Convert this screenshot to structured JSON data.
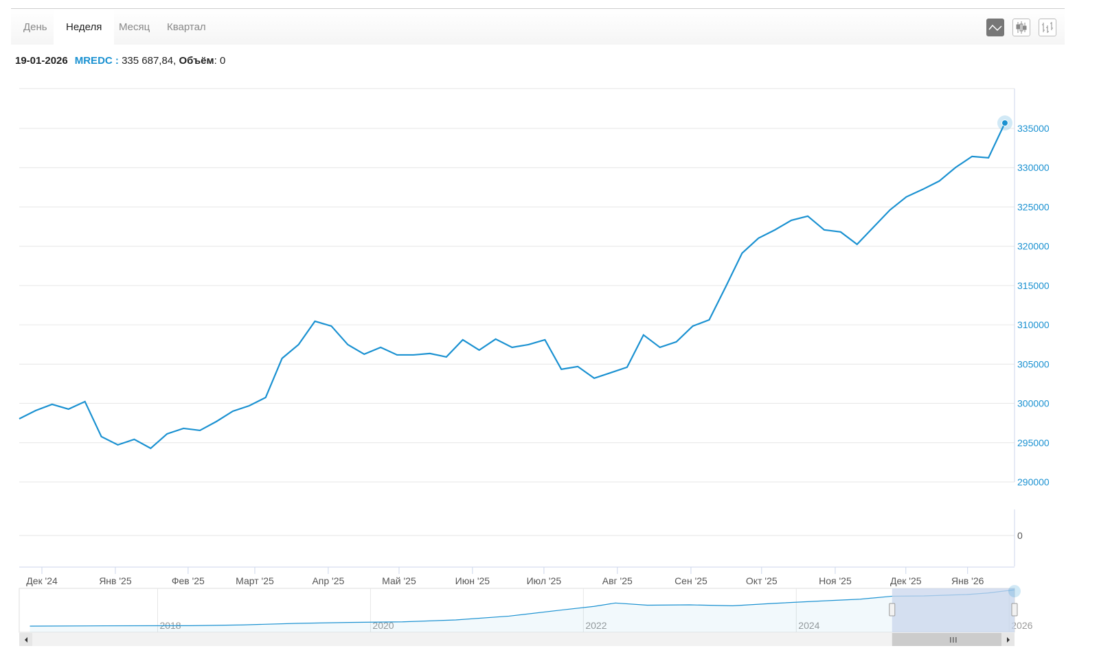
{
  "tabs": [
    {
      "label": "День"
    },
    {
      "label": "Неделя",
      "active": true
    },
    {
      "label": "Месяц"
    },
    {
      "label": "Квартал"
    }
  ],
  "chart_types": [
    "line-chart-icon",
    "candlestick-icon",
    "ohlc-icon"
  ],
  "info": {
    "date": "19-01-2026",
    "symbol": "MREDC :",
    "value": "335 687,84,",
    "volume_label": "Объём",
    "volume_value": ": 0"
  },
  "colors": {
    "line": "#1a91d1",
    "axis": "#1a91d1",
    "grid": "#e6e6e6",
    "navigator_mask": "#c9d5ec"
  },
  "chart_data": {
    "type": "line",
    "title": "",
    "series": [
      {
        "name": "MREDC",
        "values": [
          298040,
          299090,
          299880,
          299270,
          300230,
          295770,
          294720,
          295420,
          294280,
          296120,
          296820,
          296560,
          297690,
          299000,
          299700,
          300750,
          305730,
          307480,
          310450,
          309840,
          307480,
          306260,
          307130,
          306170,
          306170,
          306350,
          305910,
          308090,
          306780,
          308180,
          307130,
          307480,
          308090,
          304340,
          304690,
          303200,
          303900,
          304600,
          308710,
          307130,
          307830,
          309840,
          310630,
          314820,
          319110,
          321030,
          322080,
          323300,
          323830,
          322080,
          321820,
          320240,
          322430,
          324610,
          326280,
          327240,
          328290,
          330030,
          331430,
          331260,
          335687.84
        ]
      }
    ],
    "x_unit": "week index (weekly, last = 19-01-2026)",
    "ylim": [
      290000,
      340000
    ],
    "yticks": [
      290000,
      295000,
      300000,
      305000,
      310000,
      315000,
      320000,
      325000,
      330000,
      335000
    ],
    "xticks": [
      {
        "label": "Дек '24",
        "x": 1.38
      },
      {
        "label": "Янв '25",
        "x": 5.85
      },
      {
        "label": "Фев '25",
        "x": 10.28
      },
      {
        "label": "Март '25",
        "x": 14.34
      },
      {
        "label": "Апр '25",
        "x": 18.81
      },
      {
        "label": "Май '25",
        "x": 23.12
      },
      {
        "label": "Июн '25",
        "x": 27.59
      },
      {
        "label": "Июл '25",
        "x": 31.94
      },
      {
        "label": "Авг '25",
        "x": 36.41
      },
      {
        "label": "Сен '25",
        "x": 40.89
      },
      {
        "label": "Окт '25",
        "x": 45.19
      },
      {
        "label": "Ноя '25",
        "x": 49.67
      },
      {
        "label": "Дек '25",
        "x": 53.97
      },
      {
        "label": "Янв '26",
        "x": 57.73
      }
    ],
    "volume": {
      "ytick": "0",
      "values": [
        0
      ]
    },
    "navigator": {
      "years": [
        {
          "label": "2018",
          "x": 2018
        },
        {
          "label": "2020",
          "x": 2020
        },
        {
          "label": "2022",
          "x": 2022
        },
        {
          "label": "2024",
          "x": 2024
        },
        {
          "label": "2026",
          "x": 2026
        }
      ],
      "xlim": [
        2016.7,
        2026.05
      ],
      "selected": [
        2024.9,
        2026.05
      ],
      "values": [
        [
          2016.8,
          100000
        ],
        [
          2017.5,
          102000
        ],
        [
          2018.3,
          103000
        ],
        [
          2018.8,
          108000
        ],
        [
          2019.3,
          118000
        ],
        [
          2019.8,
          124000
        ],
        [
          2020.3,
          128000
        ],
        [
          2020.8,
          140000
        ],
        [
          2021.3,
          165000
        ],
        [
          2021.8,
          205000
        ],
        [
          2022.1,
          228000
        ],
        [
          2022.3,
          250000
        ],
        [
          2022.6,
          236000
        ],
        [
          2023.0,
          238000
        ],
        [
          2023.4,
          232000
        ],
        [
          2023.8,
          248000
        ],
        [
          2024.2,
          262000
        ],
        [
          2024.6,
          275000
        ],
        [
          2024.9,
          294000
        ],
        [
          2025.2,
          296000
        ],
        [
          2025.6,
          305000
        ],
        [
          2025.8,
          315000
        ],
        [
          2026.05,
          335688
        ]
      ],
      "ylim": [
        60000,
        345000
      ]
    }
  }
}
